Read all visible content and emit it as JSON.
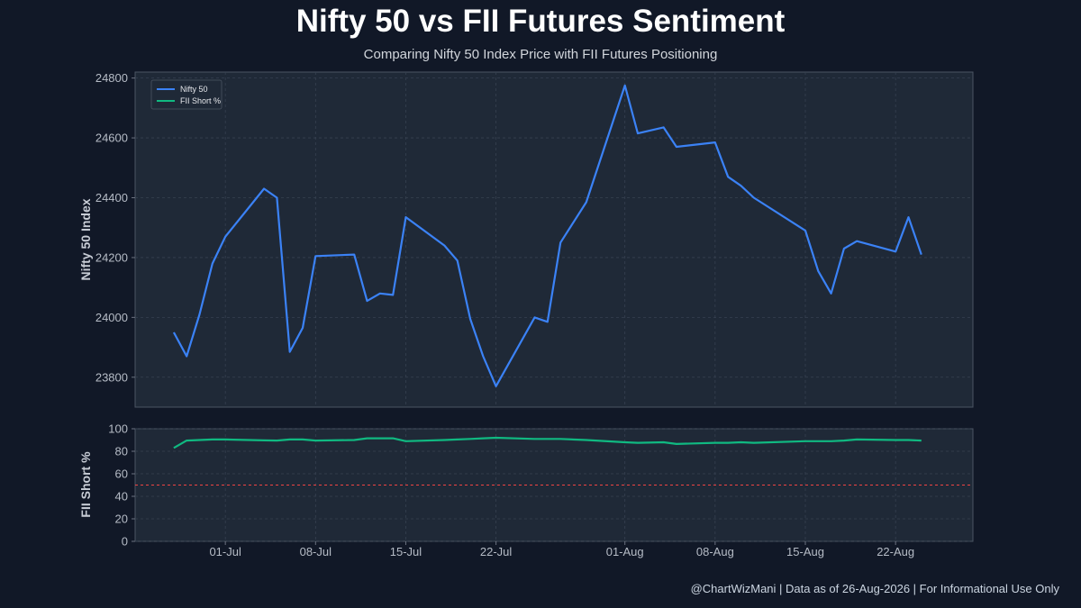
{
  "header": {
    "title": "Nifty 50 vs FII Futures Sentiment",
    "subtitle": "Comparing Nifty 50 Index Price with FII Futures Positioning"
  },
  "footer": {
    "text": "@ChartWizMani | Data as of 26-Aug-2026 | For Informational Use Only"
  },
  "colors": {
    "nifty": "#3b82f6",
    "fii": "#10b981",
    "threshold": "#ef4444",
    "panel_bg": "#1f2937",
    "grid": "#374151"
  },
  "chart_data": [
    {
      "type": "line",
      "xlabel": "",
      "ylabel": "Nifty 50 Index",
      "ylim": [
        23700,
        24820
      ],
      "yticks": [
        23800,
        24000,
        24200,
        24400,
        24600,
        24800
      ],
      "grid": true,
      "legend_placement": "top-left",
      "legend": [
        "Nifty 50",
        "FII Short %"
      ],
      "series": [
        {
          "name": "Nifty 50",
          "points": [
            [
              "2026-06-27",
              23950
            ],
            [
              "2026-06-28",
              23870
            ],
            [
              "2026-06-29",
              24010
            ],
            [
              "2026-06-30",
              24180
            ],
            [
              "2026-07-01",
              24270
            ],
            [
              "2026-07-04",
              24430
            ],
            [
              "2026-07-05",
              24400
            ],
            [
              "2026-07-06",
              23885
            ],
            [
              "2026-07-07",
              23965
            ],
            [
              "2026-07-08",
              24205
            ],
            [
              "2026-07-11",
              24210
            ],
            [
              "2026-07-12",
              24055
            ],
            [
              "2026-07-13",
              24080
            ],
            [
              "2026-07-14",
              24075
            ],
            [
              "2026-07-15",
              24335
            ],
            [
              "2026-07-18",
              24240
            ],
            [
              "2026-07-19",
              24190
            ],
            [
              "2026-07-20",
              23995
            ],
            [
              "2026-07-21",
              23870
            ],
            [
              "2026-07-22",
              23770
            ],
            [
              "2026-07-25",
              24000
            ],
            [
              "2026-07-26",
              23985
            ],
            [
              "2026-07-27",
              24250
            ],
            [
              "2026-07-29",
              24385
            ],
            [
              "2026-08-01",
              24775
            ],
            [
              "2026-08-02",
              24615
            ],
            [
              "2026-08-04",
              24635
            ],
            [
              "2026-08-05",
              24570
            ],
            [
              "2026-08-08",
              24585
            ],
            [
              "2026-08-09",
              24470
            ],
            [
              "2026-08-10",
              24440
            ],
            [
              "2026-08-11",
              24400
            ],
            [
              "2026-08-15",
              24290
            ],
            [
              "2026-08-16",
              24155
            ],
            [
              "2026-08-17",
              24080
            ],
            [
              "2026-08-18",
              24230
            ],
            [
              "2026-08-19",
              24255
            ],
            [
              "2026-08-22",
              24220
            ],
            [
              "2026-08-23",
              24335
            ],
            [
              "2026-08-24",
              24210
            ]
          ]
        }
      ]
    },
    {
      "type": "line",
      "xlabel": "",
      "ylabel": "FII Short %",
      "ylim": [
        0,
        100
      ],
      "yticks": [
        0,
        20,
        40,
        60,
        80,
        100
      ],
      "xticks": [
        "01-Jul",
        "08-Jul",
        "15-Jul",
        "22-Jul",
        "01-Aug",
        "08-Aug",
        "15-Aug",
        "22-Aug"
      ],
      "xtick_dates": [
        "2026-07-01",
        "2026-07-08",
        "2026-07-15",
        "2026-07-22",
        "2026-08-01",
        "2026-08-08",
        "2026-08-15",
        "2026-08-22"
      ],
      "grid": true,
      "reference_line": 50,
      "series": [
        {
          "name": "FII Short %",
          "points": [
            [
              "2026-06-27",
              83
            ],
            [
              "2026-06-28",
              89.5
            ],
            [
              "2026-06-29",
              90
            ],
            [
              "2026-06-30",
              90.5
            ],
            [
              "2026-07-01",
              90.5
            ],
            [
              "2026-07-04",
              89.7
            ],
            [
              "2026-07-05",
              89.5
            ],
            [
              "2026-07-06",
              90.5
            ],
            [
              "2026-07-07",
              90.5
            ],
            [
              "2026-07-08",
              89.5
            ],
            [
              "2026-07-11",
              90
            ],
            [
              "2026-07-12",
              91.5
            ],
            [
              "2026-07-13",
              91.5
            ],
            [
              "2026-07-14",
              91.5
            ],
            [
              "2026-07-15",
              89
            ],
            [
              "2026-07-18",
              90
            ],
            [
              "2026-07-19",
              90.5
            ],
            [
              "2026-07-20",
              91
            ],
            [
              "2026-07-21",
              91.5
            ],
            [
              "2026-07-22",
              92
            ],
            [
              "2026-07-25",
              91
            ],
            [
              "2026-07-26",
              91
            ],
            [
              "2026-07-27",
              91
            ],
            [
              "2026-07-29",
              90
            ],
            [
              "2026-08-01",
              88
            ],
            [
              "2026-08-02",
              87.5
            ],
            [
              "2026-08-04",
              88
            ],
            [
              "2026-08-05",
              86.5
            ],
            [
              "2026-08-08",
              87.5
            ],
            [
              "2026-08-09",
              87.5
            ],
            [
              "2026-08-10",
              88
            ],
            [
              "2026-08-11",
              87.5
            ],
            [
              "2026-08-15",
              89
            ],
            [
              "2026-08-16",
              89
            ],
            [
              "2026-08-17",
              89
            ],
            [
              "2026-08-18",
              89.5
            ],
            [
              "2026-08-19",
              90.5
            ],
            [
              "2026-08-22",
              90
            ],
            [
              "2026-08-23",
              90
            ],
            [
              "2026-08-24",
              89.5
            ]
          ]
        }
      ]
    }
  ]
}
